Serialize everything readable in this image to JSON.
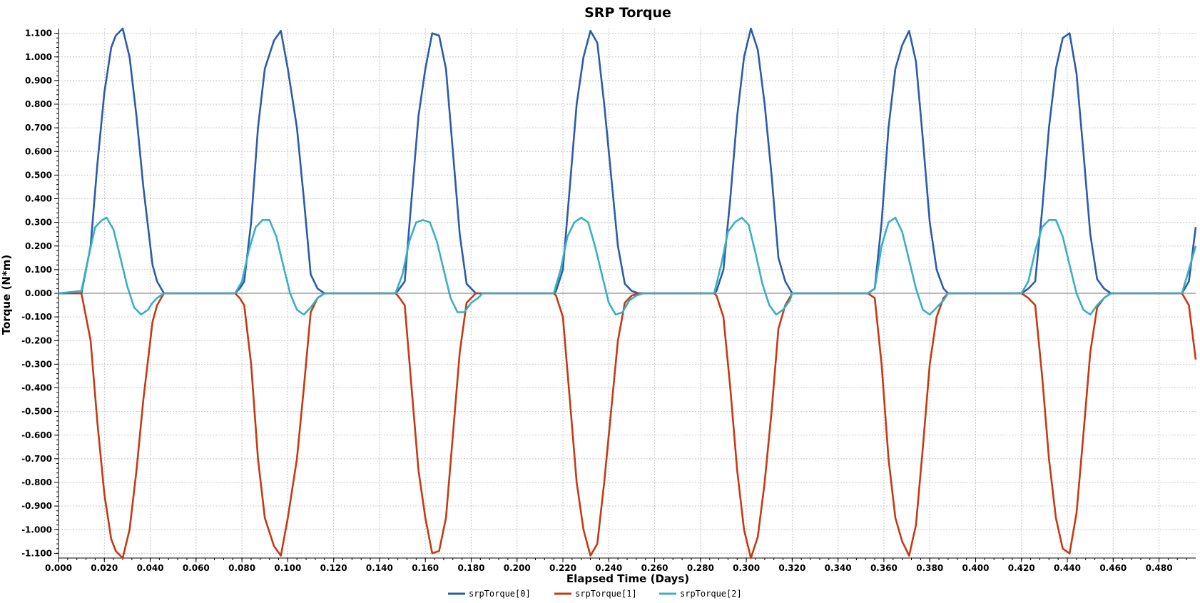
{
  "chart_data": {
    "type": "line",
    "title": "SRP Torque",
    "xlabel": "Elapsed Time (Days)",
    "ylabel": "Torque (N*m)",
    "xlim": [
      0.0,
      0.496
    ],
    "ylim": [
      -1.12,
      1.12
    ],
    "xticks": [
      "0.000",
      "0.020",
      "0.040",
      "0.060",
      "0.080",
      "0.100",
      "0.120",
      "0.140",
      "0.160",
      "0.180",
      "0.200",
      "0.220",
      "0.240",
      "0.260",
      "0.280",
      "0.300",
      "0.320",
      "0.340",
      "0.360",
      "0.380",
      "0.400",
      "0.420",
      "0.440",
      "0.460",
      "0.480"
    ],
    "yticks": [
      "1.100",
      "1.000",
      "0.900",
      "0.800",
      "0.700",
      "0.600",
      "0.500",
      "0.400",
      "0.300",
      "0.200",
      "0.100",
      "0.000",
      "-0.100",
      "-0.200",
      "-0.300",
      "-0.400",
      "-0.500",
      "-0.600",
      "-0.700",
      "-0.800",
      "-0.900",
      "-1.000",
      "-1.100"
    ],
    "grid": true,
    "legend_position": "bottom-center",
    "colors": {
      "s0": "#2a5caa",
      "s1": "#c43a12",
      "s2": "#3aafc4",
      "zero_line": "#a0a0a0",
      "grid": "#c8c8c8"
    },
    "series": [
      {
        "name": "srpTorque[0]",
        "x": [
          0.0,
          0.01,
          0.011,
          0.014,
          0.017,
          0.02,
          0.023,
          0.025,
          0.028,
          0.031,
          0.034,
          0.037,
          0.041,
          0.043,
          0.046,
          0.047,
          0.077,
          0.079,
          0.081,
          0.084,
          0.087,
          0.09,
          0.094,
          0.097,
          0.1,
          0.104,
          0.107,
          0.11,
          0.113,
          0.116,
          0.117,
          0.147,
          0.148,
          0.151,
          0.154,
          0.157,
          0.16,
          0.163,
          0.166,
          0.169,
          0.172,
          0.175,
          0.178,
          0.182,
          0.185,
          0.216,
          0.217,
          0.22,
          0.223,
          0.226,
          0.229,
          0.232,
          0.235,
          0.238,
          0.241,
          0.244,
          0.247,
          0.25,
          0.253,
          0.255,
          0.286,
          0.287,
          0.29,
          0.293,
          0.296,
          0.299,
          0.302,
          0.305,
          0.308,
          0.311,
          0.314,
          0.317,
          0.32,
          0.353,
          0.356,
          0.359,
          0.362,
          0.365,
          0.368,
          0.371,
          0.374,
          0.377,
          0.38,
          0.383,
          0.386,
          0.388,
          0.42,
          0.423,
          0.426,
          0.429,
          0.432,
          0.435,
          0.438,
          0.441,
          0.444,
          0.447,
          0.45,
          0.453,
          0.456,
          0.459,
          0.49,
          0.493,
          0.496
        ],
        "y": [
          0.0,
          0.0,
          0.05,
          0.2,
          0.55,
          0.85,
          1.04,
          1.09,
          1.12,
          1.0,
          0.75,
          0.45,
          0.12,
          0.05,
          0.0,
          0.0,
          0.0,
          0.02,
          0.05,
          0.3,
          0.7,
          0.95,
          1.07,
          1.11,
          0.95,
          0.7,
          0.4,
          0.08,
          0.02,
          0.0,
          0.0,
          0.0,
          0.01,
          0.05,
          0.4,
          0.75,
          0.95,
          1.1,
          1.09,
          0.95,
          0.6,
          0.25,
          0.04,
          0.0,
          0.0,
          0.0,
          0.01,
          0.1,
          0.45,
          0.8,
          1.0,
          1.11,
          1.06,
          0.8,
          0.5,
          0.2,
          0.04,
          0.01,
          0.0,
          0.0,
          0.0,
          0.01,
          0.1,
          0.4,
          0.75,
          1.0,
          1.12,
          1.03,
          0.8,
          0.5,
          0.15,
          0.05,
          0.0,
          0.0,
          0.02,
          0.3,
          0.7,
          0.95,
          1.05,
          1.11,
          0.98,
          0.65,
          0.3,
          0.1,
          0.02,
          0.0,
          0.0,
          0.02,
          0.05,
          0.35,
          0.7,
          0.95,
          1.08,
          1.1,
          0.93,
          0.6,
          0.25,
          0.06,
          0.02,
          0.0,
          0.0,
          0.05,
          0.28
        ]
      },
      {
        "name": "srpTorque[1]",
        "x": [
          0.0,
          0.01,
          0.011,
          0.014,
          0.017,
          0.02,
          0.023,
          0.025,
          0.028,
          0.031,
          0.034,
          0.037,
          0.041,
          0.043,
          0.046,
          0.047,
          0.077,
          0.079,
          0.081,
          0.084,
          0.087,
          0.09,
          0.094,
          0.097,
          0.1,
          0.104,
          0.107,
          0.11,
          0.113,
          0.116,
          0.117,
          0.147,
          0.148,
          0.151,
          0.154,
          0.157,
          0.16,
          0.163,
          0.166,
          0.169,
          0.172,
          0.175,
          0.178,
          0.182,
          0.185,
          0.216,
          0.217,
          0.22,
          0.223,
          0.226,
          0.229,
          0.232,
          0.235,
          0.238,
          0.241,
          0.244,
          0.247,
          0.25,
          0.253,
          0.255,
          0.286,
          0.287,
          0.29,
          0.293,
          0.296,
          0.299,
          0.302,
          0.305,
          0.308,
          0.311,
          0.314,
          0.317,
          0.32,
          0.353,
          0.356,
          0.359,
          0.362,
          0.365,
          0.368,
          0.371,
          0.374,
          0.377,
          0.38,
          0.383,
          0.386,
          0.388,
          0.42,
          0.423,
          0.426,
          0.429,
          0.432,
          0.435,
          0.438,
          0.441,
          0.444,
          0.447,
          0.45,
          0.453,
          0.456,
          0.459,
          0.49,
          0.493,
          0.496
        ],
        "y": [
          0.0,
          0.0,
          -0.05,
          -0.2,
          -0.55,
          -0.85,
          -1.04,
          -1.09,
          -1.12,
          -1.0,
          -0.75,
          -0.45,
          -0.12,
          -0.05,
          0.0,
          0.0,
          0.0,
          -0.02,
          -0.05,
          -0.3,
          -0.7,
          -0.95,
          -1.07,
          -1.11,
          -0.95,
          -0.7,
          -0.4,
          -0.08,
          -0.02,
          0.0,
          0.0,
          0.0,
          -0.01,
          -0.05,
          -0.4,
          -0.75,
          -0.95,
          -1.1,
          -1.09,
          -0.95,
          -0.6,
          -0.25,
          -0.04,
          0.0,
          0.0,
          0.0,
          -0.01,
          -0.1,
          -0.45,
          -0.8,
          -1.0,
          -1.11,
          -1.06,
          -0.8,
          -0.5,
          -0.2,
          -0.04,
          -0.01,
          0.0,
          0.0,
          0.0,
          -0.01,
          -0.1,
          -0.4,
          -0.75,
          -1.0,
          -1.12,
          -1.03,
          -0.8,
          -0.5,
          -0.15,
          -0.05,
          0.0,
          0.0,
          -0.02,
          -0.3,
          -0.7,
          -0.95,
          -1.05,
          -1.11,
          -0.98,
          -0.65,
          -0.3,
          -0.1,
          -0.02,
          0.0,
          0.0,
          -0.02,
          -0.05,
          -0.35,
          -0.7,
          -0.95,
          -1.08,
          -1.1,
          -0.93,
          -0.6,
          -0.25,
          -0.06,
          -0.02,
          0.0,
          0.0,
          -0.05,
          -0.28
        ]
      },
      {
        "name": "srpTorque[2]",
        "x": [
          0.0,
          0.01,
          0.013,
          0.016,
          0.019,
          0.021,
          0.024,
          0.027,
          0.03,
          0.033,
          0.036,
          0.039,
          0.041,
          0.043,
          0.046,
          0.077,
          0.08,
          0.083,
          0.086,
          0.089,
          0.092,
          0.095,
          0.098,
          0.101,
          0.104,
          0.107,
          0.11,
          0.113,
          0.116,
          0.147,
          0.15,
          0.153,
          0.156,
          0.159,
          0.162,
          0.165,
          0.168,
          0.171,
          0.174,
          0.177,
          0.18,
          0.183,
          0.185,
          0.216,
          0.219,
          0.222,
          0.225,
          0.228,
          0.231,
          0.234,
          0.237,
          0.24,
          0.243,
          0.246,
          0.249,
          0.252,
          0.255,
          0.286,
          0.289,
          0.292,
          0.295,
          0.298,
          0.301,
          0.304,
          0.307,
          0.31,
          0.313,
          0.316,
          0.319,
          0.32,
          0.353,
          0.356,
          0.359,
          0.362,
          0.365,
          0.368,
          0.371,
          0.374,
          0.377,
          0.38,
          0.383,
          0.386,
          0.388,
          0.42,
          0.423,
          0.426,
          0.429,
          0.432,
          0.435,
          0.438,
          0.441,
          0.444,
          0.447,
          0.45,
          0.453,
          0.456,
          0.459,
          0.49,
          0.493,
          0.496
        ],
        "y": [
          0.0,
          0.01,
          0.15,
          0.28,
          0.31,
          0.32,
          0.27,
          0.15,
          0.03,
          -0.06,
          -0.09,
          -0.07,
          -0.04,
          -0.02,
          0.0,
          0.0,
          0.05,
          0.18,
          0.28,
          0.31,
          0.31,
          0.24,
          0.12,
          0.0,
          -0.07,
          -0.09,
          -0.06,
          -0.02,
          0.0,
          0.0,
          0.08,
          0.22,
          0.3,
          0.31,
          0.3,
          0.22,
          0.1,
          -0.02,
          -0.08,
          -0.08,
          -0.04,
          -0.02,
          0.0,
          0.0,
          0.1,
          0.24,
          0.3,
          0.32,
          0.3,
          0.2,
          0.08,
          -0.04,
          -0.09,
          -0.08,
          -0.03,
          -0.01,
          0.0,
          0.0,
          0.12,
          0.26,
          0.3,
          0.32,
          0.29,
          0.17,
          0.04,
          -0.05,
          -0.09,
          -0.07,
          -0.03,
          0.0,
          0.0,
          0.02,
          0.2,
          0.3,
          0.32,
          0.26,
          0.14,
          0.02,
          -0.07,
          -0.09,
          -0.06,
          -0.03,
          0.0,
          0.0,
          0.05,
          0.18,
          0.28,
          0.31,
          0.31,
          0.24,
          0.12,
          0.0,
          -0.07,
          -0.09,
          -0.05,
          -0.02,
          0.0,
          0.0,
          0.1,
          0.2
        ]
      }
    ]
  }
}
